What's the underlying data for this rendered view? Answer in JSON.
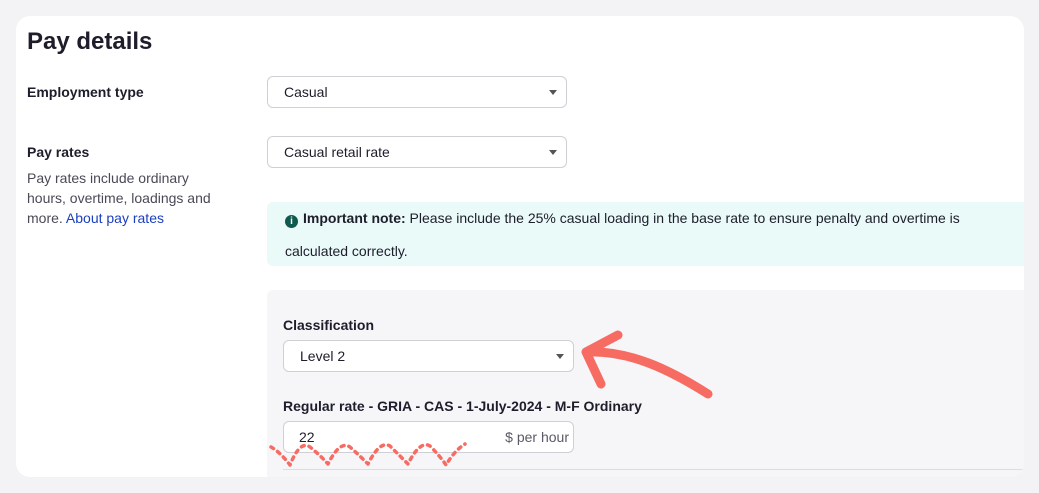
{
  "title": "Pay details",
  "employment_type": {
    "label": "Employment type",
    "value": "Casual"
  },
  "pay_rates": {
    "label": "Pay rates",
    "help": "Pay rates include ordinary hours, overtime, loadings and more.",
    "link": "About pay rates",
    "value": "Casual retail rate"
  },
  "note": {
    "icon": "info-icon",
    "bold": "Important note:",
    "text": "Please include the 25% casual loading in the base rate to ensure penalty and overtime is calculated correctly."
  },
  "classification": {
    "label": "Classification",
    "value": "Level 2"
  },
  "regular_rate": {
    "label": "Regular rate - GRIA - CAS - 1-July-2024 - M-F Ordinary",
    "value": "22",
    "unit": "$ per hour"
  },
  "annotation_color": "#f76c62"
}
